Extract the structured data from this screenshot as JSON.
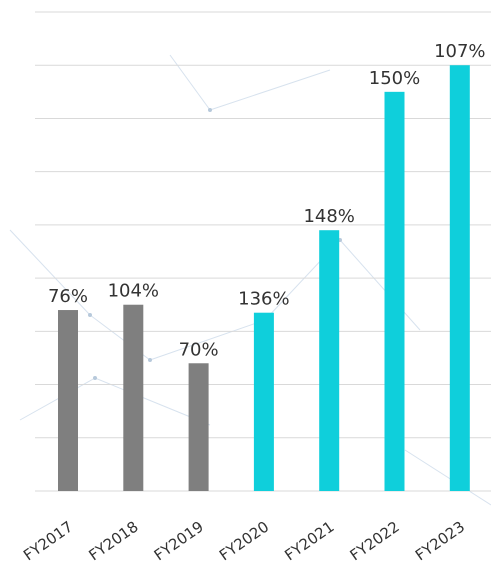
{
  "chart_data": {
    "type": "bar",
    "title": "",
    "xlabel": "",
    "ylabel": "",
    "categories": [
      "FY2017",
      "FY2018",
      "FY2019",
      "FY2020",
      "FY2021",
      "FY2022",
      "FY2023"
    ],
    "data_labels": [
      "76%",
      "104%",
      "70%",
      "136%",
      "148%",
      "150%",
      "107%"
    ],
    "values": [
      34,
      35,
      24,
      33.5,
      49,
      75,
      80
    ],
    "ylim": [
      0,
      90
    ],
    "grid": true,
    "legend": false,
    "colors": {
      "historical": "#7f7f7f",
      "current": "#0fcfdb",
      "gridline": "#d9d9d9"
    },
    "color_groups": [
      "historical",
      "historical",
      "historical",
      "current",
      "current",
      "current",
      "current"
    ]
  }
}
